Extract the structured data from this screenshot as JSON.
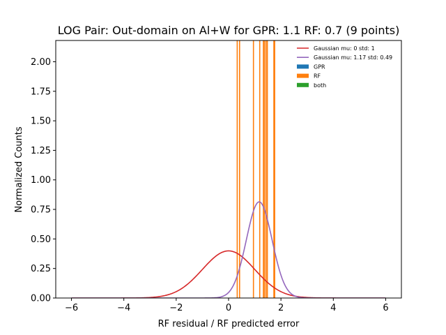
{
  "chart_data": {
    "type": "histogram",
    "title": "LOG Pair: Out-domain on Al+W for GPR: 1.1 RF: 0.7 (9 points)",
    "xlabel": "RF residual / RF predicted error",
    "ylabel": "Normalized Counts",
    "xlim": [
      -6.6,
      6.6
    ],
    "ylim": [
      0,
      2.18
    ],
    "xticks": [
      -6,
      -4,
      -2,
      0,
      2,
      4,
      6
    ],
    "xtick_labels": [
      "−6",
      "−4",
      "−2",
      "0",
      "2",
      "4",
      "6"
    ],
    "yticks": [
      0,
      0.25,
      0.5,
      0.75,
      1.0,
      1.25,
      1.5,
      1.75,
      2.0
    ],
    "ytick_labels": [
      "0.00",
      "0.25",
      "0.50",
      "0.75",
      "1.00",
      "1.25",
      "1.50",
      "1.75",
      "2.00"
    ],
    "legend_position": "top-right",
    "series": [
      {
        "name": "Gaussian mu: 0 std: 1",
        "kind": "gaussian",
        "mu": 0,
        "std": 1,
        "x_range": [
          -6,
          6
        ],
        "color": "#d62728"
      },
      {
        "name": "Gaussian mu: 1.17 std: 0.49",
        "kind": "gaussian",
        "mu": 1.17,
        "std": 0.49,
        "x_range": [
          -6,
          6
        ],
        "color": "#9467bd"
      },
      {
        "name": "GPR",
        "kind": "bars",
        "color": "#1f77b4",
        "edges": []
      },
      {
        "name": "RF",
        "kind": "bars",
        "color": "#ff7f0e",
        "edges": [
          0.33,
          0.42,
          0.95,
          1.19,
          1.33,
          1.37,
          1.43,
          1.48,
          1.73,
          1.76
        ]
      },
      {
        "name": "both",
        "kind": "bars",
        "color": "#2ca02c",
        "edges": []
      }
    ]
  }
}
